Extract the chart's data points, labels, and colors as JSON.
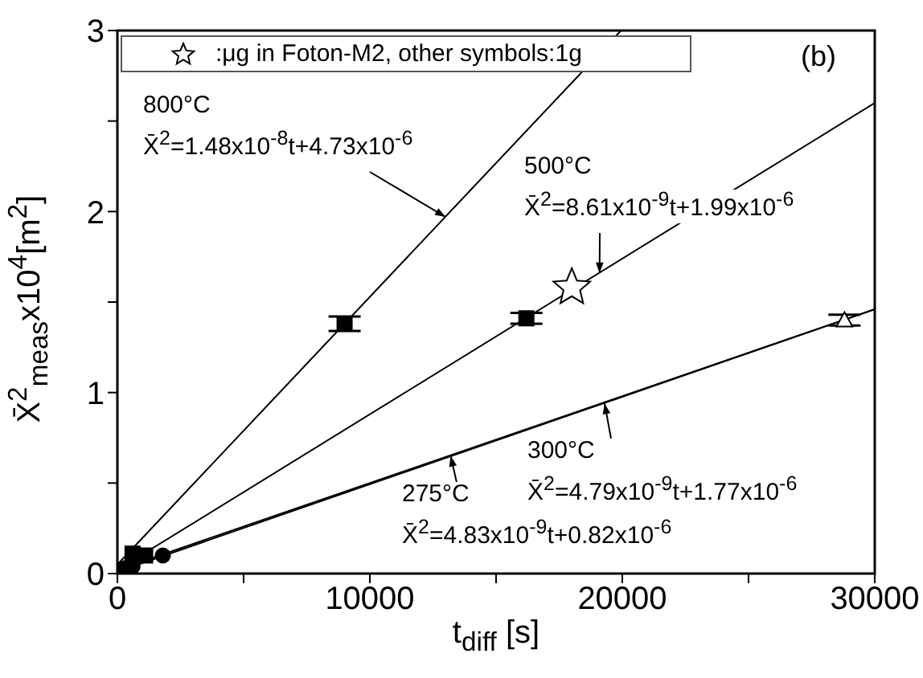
{
  "chart_data": {
    "type": "scatter",
    "xlabel": "t$_{diff}$ [s]",
    "ylabel": "X̄$^{2}$$_{meas}$x10$^{4}$[m$^{2}$]",
    "xlim": [
      0,
      30000
    ],
    "ylim": [
      0,
      3
    ],
    "xticks": [
      0,
      {
        "value": 5000,
        "label": null
      },
      10000,
      {
        "value": 15000,
        "label": null
      },
      20000,
      {
        "value": 25000,
        "label": null
      },
      30000
    ],
    "yticks": [
      0,
      {
        "value": 0.5,
        "label": null
      },
      1,
      {
        "value": 1.5,
        "label": null
      },
      2,
      {
        "value": 2.5,
        "label": null
      },
      3
    ],
    "grid": false,
    "legend": "top left",
    "series": [
      {
        "type": "line",
        "color": "#000000",
        "marker": "none",
        "x": [
          0,
          19950
        ],
        "values": [
          0.05,
          3
        ]
      },
      {
        "type": "scatter",
        "color": "#000000",
        "marker": "square",
        "x": [
          9000,
          600
        ],
        "values": [
          1.38,
          0.11
        ],
        "errors": [
          0.04,
          null
        ]
      },
      {
        "type": "line",
        "color": "#000000",
        "marker": "none",
        "x": [
          0,
          30000
        ],
        "values": [
          0.02,
          2.6
        ]
      },
      {
        "type": "scatter",
        "color": "#000000",
        "marker": "square",
        "x": [
          16200,
          1100
        ],
        "values": [
          1.41,
          0.1
        ],
        "errors": [
          0.03,
          null
        ]
      },
      {
        "type": "scatter",
        "name": ":μg in Foton-M2, other symbols:1g",
        "color": "#000000",
        "marker": "star",
        "x": [
          18000
        ],
        "values": [
          1.58
        ]
      },
      {
        "type": "line",
        "color": "#000000",
        "marker": "none",
        "x": [
          0,
          30000
        ],
        "values": [
          0.02,
          1.46
        ]
      },
      {
        "type": "scatter",
        "color": "#000000",
        "marker": "triangle",
        "x": [
          28800
        ],
        "values": [
          1.4
        ],
        "errors": [
          0.03
        ]
      },
      {
        "type": "line",
        "color": "#000000",
        "marker": "none",
        "x": [
          0,
          30000
        ],
        "values": [
          0.01,
          1.46
        ]
      },
      {
        "type": "scatter",
        "color": "#000000",
        "marker": "circle",
        "x": [
          1800,
          600,
          300
        ],
        "values": [
          0.1,
          0.04,
          0.03
        ]
      }
    ],
    "annotations": [
      "(b)",
      "800°C",
      {
        "text": "X̄$^{2}$=1.48x10$^{-8}$t+4.73x10$^{-6}$",
        "x": 13000,
        "y": 1.97
      },
      "500°C",
      {
        "text": "X̄$^{2}$=8.61x10$^{-9}$t+1.99x10$^{-6}$",
        "x": 19100,
        "y": 1.66
      },
      {
        "text": "300°C",
        "x": 19300,
        "y": 0.94
      },
      "X̄$^{2}$=4.79x10$^{-9}$t+1.77x10$^{-6}$",
      {
        "text": "275°C",
        "x": 13200,
        "y": 0.65
      },
      "X̄$^{2}$=4.83x10$^{-9}$t+0.82x10$^{-6}$"
    ]
  }
}
